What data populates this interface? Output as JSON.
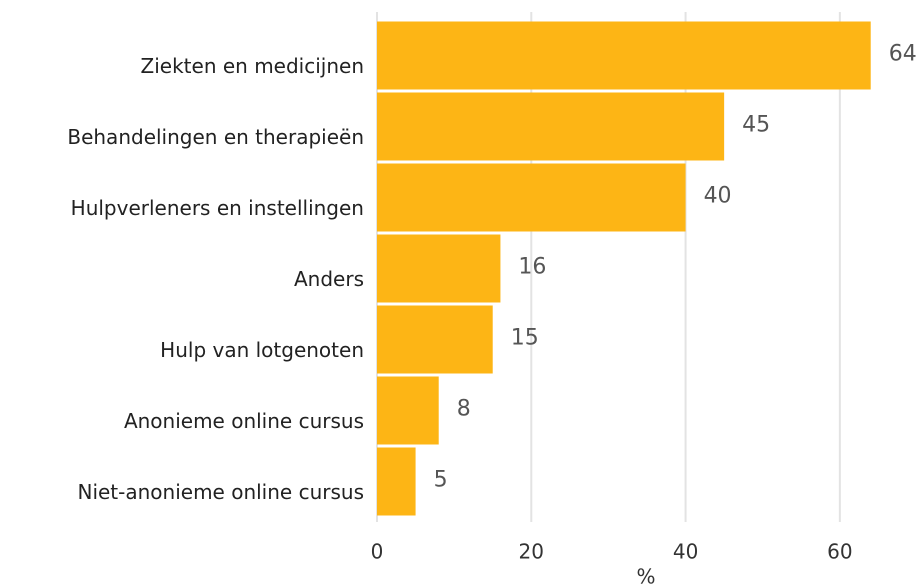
{
  "chart_data": {
    "type": "barh",
    "categories": [
      "Ziekten en medicijnen",
      "Behandelingen en therapieën",
      "Hulpverleners en instellingen",
      "Anders",
      "Hulp van lotgenoten",
      "Anonieme online cursus",
      "Niet-anonieme online cursus"
    ],
    "values": [
      64,
      45,
      40,
      16,
      15,
      8,
      5
    ],
    "color": "#fdb515",
    "xlabel": "%",
    "xlim": [
      0,
      70
    ],
    "xticks": [
      0,
      20,
      40,
      60
    ],
    "grid": true
  }
}
